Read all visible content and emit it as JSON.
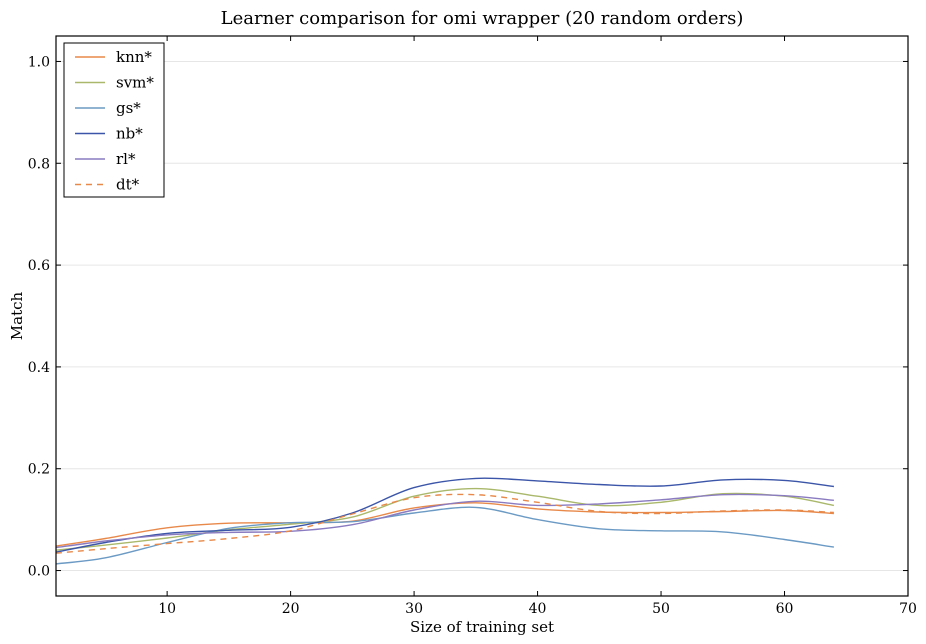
{
  "chart_data": {
    "type": "line",
    "title": "Learner comparison for omi wrapper (20 random orders)",
    "xlabel": "Size of training set",
    "ylabel": "Match",
    "xlim": [
      1,
      70
    ],
    "ylim": [
      -0.05,
      1.05
    ],
    "xticks": [
      10,
      20,
      30,
      40,
      50,
      60,
      70
    ],
    "yticks": [
      0.0,
      0.2,
      0.4,
      0.6,
      0.8,
      1.0
    ],
    "grid": "horizontal",
    "legend_position": "top-left",
    "series": [
      {
        "name": "knn*",
        "color": "#e8894a",
        "dash": "solid",
        "x": [
          1,
          5,
          10,
          15,
          20,
          25,
          30,
          35,
          40,
          45,
          50,
          55,
          60,
          64
        ],
        "y": [
          0.048,
          0.063,
          0.084,
          0.093,
          0.094,
          0.097,
          0.123,
          0.133,
          0.121,
          0.115,
          0.114,
          0.116,
          0.118,
          0.112
        ]
      },
      {
        "name": "svm*",
        "color": "#a9b86a",
        "dash": "solid",
        "x": [
          1,
          5,
          10,
          15,
          20,
          25,
          30,
          35,
          40,
          45,
          50,
          55,
          60,
          64
        ],
        "y": [
          0.04,
          0.05,
          0.064,
          0.08,
          0.091,
          0.105,
          0.146,
          0.161,
          0.146,
          0.128,
          0.134,
          0.151,
          0.146,
          0.128
        ]
      },
      {
        "name": "gs*",
        "color": "#6b9ac4",
        "dash": "solid",
        "x": [
          1,
          5,
          10,
          15,
          20,
          25,
          30,
          35,
          40,
          45,
          50,
          55,
          60,
          64
        ],
        "y": [
          0.013,
          0.025,
          0.055,
          0.083,
          0.094,
          0.096,
          0.113,
          0.124,
          0.1,
          0.082,
          0.078,
          0.076,
          0.061,
          0.046
        ]
      },
      {
        "name": "nb*",
        "color": "#3b55a8",
        "dash": "solid",
        "x": [
          1,
          5,
          10,
          15,
          20,
          25,
          30,
          35,
          40,
          45,
          50,
          55,
          60,
          64
        ],
        "y": [
          0.036,
          0.055,
          0.073,
          0.079,
          0.085,
          0.113,
          0.163,
          0.181,
          0.176,
          0.169,
          0.166,
          0.178,
          0.177,
          0.165
        ]
      },
      {
        "name": "rl*",
        "color": "#8a7bc0",
        "dash": "solid",
        "x": [
          1,
          5,
          10,
          15,
          20,
          25,
          30,
          35,
          40,
          45,
          50,
          55,
          60,
          64
        ],
        "y": [
          0.045,
          0.058,
          0.07,
          0.075,
          0.077,
          0.09,
          0.119,
          0.136,
          0.128,
          0.131,
          0.139,
          0.149,
          0.147,
          0.138
        ]
      },
      {
        "name": "dt*",
        "color": "#e8894a",
        "dash": "dashed",
        "x": [
          1,
          5,
          10,
          15,
          20,
          25,
          30,
          35,
          40,
          45,
          50,
          55,
          60,
          64
        ],
        "y": [
          0.034,
          0.043,
          0.053,
          0.063,
          0.078,
          0.111,
          0.143,
          0.149,
          0.134,
          0.116,
          0.112,
          0.117,
          0.119,
          0.114
        ]
      }
    ]
  }
}
